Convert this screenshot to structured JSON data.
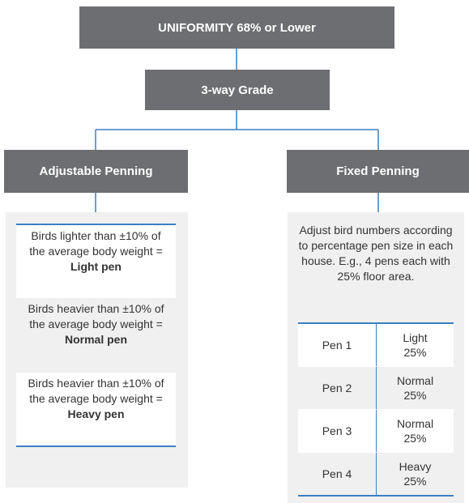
{
  "root": {
    "title": "UNIFORMITY 68% or Lower"
  },
  "step": {
    "title": "3-way Grade"
  },
  "left": {
    "title": "Adjustable Penning",
    "items": [
      {
        "text": "Birds lighter than ±10% of the average body weight =",
        "emphasis": "Light pen"
      },
      {
        "text": "Birds heavier than ±10% of the average body weight =",
        "emphasis": "Normal pen"
      },
      {
        "text": "Birds heavier than ±10% of the average body weight =",
        "emphasis": "Heavy pen"
      }
    ]
  },
  "right": {
    "title": "Fixed Penning",
    "description": "Adjust bird numbers according to percentage pen size in each house. E.g., 4 pens each with 25% floor area.",
    "rows": [
      [
        "Pen 1",
        "Light 25%"
      ],
      [
        "Pen 2",
        "Normal 25%"
      ],
      [
        "Pen 3",
        "Normal 25%"
      ],
      [
        "Pen 4",
        "Heavy 25%"
      ]
    ]
  }
}
